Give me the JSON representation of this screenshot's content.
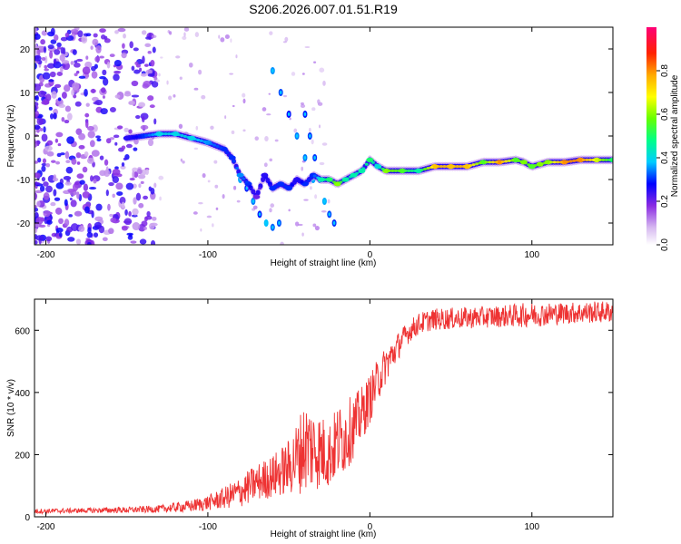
{
  "title": "S206.2026.007.01.51.R19",
  "chart_data": [
    {
      "type": "heatmap",
      "description_panel": "spectrogram",
      "xlabel": "Height of straight line (km)",
      "ylabel": "Frequency (Hz)",
      "xlim": [
        -207,
        150
      ],
      "ylim": [
        -25,
        25
      ],
      "xticks": [
        -200,
        -100,
        0,
        100
      ],
      "yticks": [
        -20,
        -10,
        0,
        10,
        20
      ],
      "colorbar": {
        "label": "Normalized spectral amplitude",
        "range": [
          0,
          1
        ],
        "ticks": [
          0.0,
          0.2,
          0.4,
          0.6,
          0.8
        ]
      },
      "ridge": {
        "x": [
          -150,
          -140,
          -130,
          -120,
          -110,
          -100,
          -90,
          -85,
          -80,
          -75,
          -70,
          -65,
          -60,
          -55,
          -50,
          -45,
          -40,
          -35,
          -30,
          -25,
          -20,
          -15,
          -10,
          -5,
          0,
          5,
          10,
          20,
          30,
          40,
          50,
          60,
          70,
          80,
          90,
          95,
          100,
          105,
          110,
          120,
          130,
          140,
          150
        ],
        "y": [
          -0.5,
          0,
          0.5,
          0.5,
          -0.5,
          -1.5,
          -3,
          -5,
          -9,
          -11,
          -14,
          -9,
          -12,
          -11,
          -12,
          -10,
          -11,
          -9,
          -10,
          -10,
          -11,
          -10,
          -9,
          -8,
          -5.5,
          -7,
          -8,
          -8,
          -8,
          -7,
          -7,
          -7,
          -6,
          -6,
          -5.5,
          -6,
          -7,
          -6.5,
          -6,
          -6,
          -5.5,
          -5.5,
          -5.5
        ],
        "amp": [
          0.25,
          0.3,
          0.4,
          0.4,
          0.4,
          0.35,
          0.3,
          0.3,
          0.35,
          0.3,
          0.2,
          0.25,
          0.3,
          0.3,
          0.3,
          0.25,
          0.3,
          0.3,
          0.45,
          0.5,
          0.6,
          0.45,
          0.45,
          0.45,
          0.5,
          0.4,
          0.6,
          0.55,
          0.45,
          0.75,
          0.75,
          0.75,
          0.55,
          0.8,
          0.55,
          0.6,
          0.55,
          0.6,
          0.6,
          0.8,
          0.8,
          0.65,
          0.5
        ]
      },
      "branches": [
        {
          "x": [
            -60,
            -55,
            -50,
            -45,
            -40,
            -35
          ],
          "y": [
            15,
            10,
            5,
            0,
            -5,
            -10
          ]
        },
        {
          "x": [
            -40,
            -37,
            -34,
            -31,
            -28,
            -25,
            -22
          ],
          "y": [
            5,
            0,
            -5,
            -10,
            -15,
            -18,
            -20
          ]
        },
        {
          "x": [
            -80,
            -76,
            -72,
            -68,
            -64,
            -60,
            -56
          ],
          "y": [
            -10,
            -12,
            -15,
            -18,
            -20,
            -21,
            -20
          ]
        }
      ]
    },
    {
      "type": "line",
      "description_panel": "snr",
      "xlabel": "Height of straight line (km)",
      "ylabel": "SNR (10 * v/v)",
      "xlim": [
        -207,
        150
      ],
      "ylim": [
        0,
        700
      ],
      "xticks": [
        -200,
        -100,
        0,
        100
      ],
      "yticks": [
        0,
        200,
        400,
        600
      ],
      "color": "#ee3333",
      "envelope": {
        "x": [
          -207,
          -180,
          -150,
          -130,
          -110,
          -100,
          -90,
          -80,
          -70,
          -60,
          -50,
          -45,
          -40,
          -35,
          -30,
          -25,
          -20,
          -15,
          -10,
          -5,
          0,
          5,
          10,
          15,
          20,
          25,
          30,
          35,
          40,
          60,
          80,
          100,
          120,
          150
        ],
        "mean": [
          18,
          20,
          22,
          25,
          35,
          45,
          60,
          80,
          110,
          130,
          160,
          190,
          230,
          220,
          210,
          200,
          240,
          260,
          290,
          330,
          380,
          440,
          490,
          530,
          570,
          600,
          620,
          630,
          635,
          640,
          645,
          650,
          655,
          660
        ],
        "noise": [
          8,
          8,
          10,
          12,
          20,
          25,
          35,
          50,
          60,
          70,
          90,
          120,
          150,
          140,
          120,
          110,
          120,
          120,
          100,
          90,
          80,
          70,
          60,
          50,
          40,
          35,
          35,
          35,
          35,
          35,
          35,
          40,
          35,
          35
        ]
      }
    }
  ]
}
